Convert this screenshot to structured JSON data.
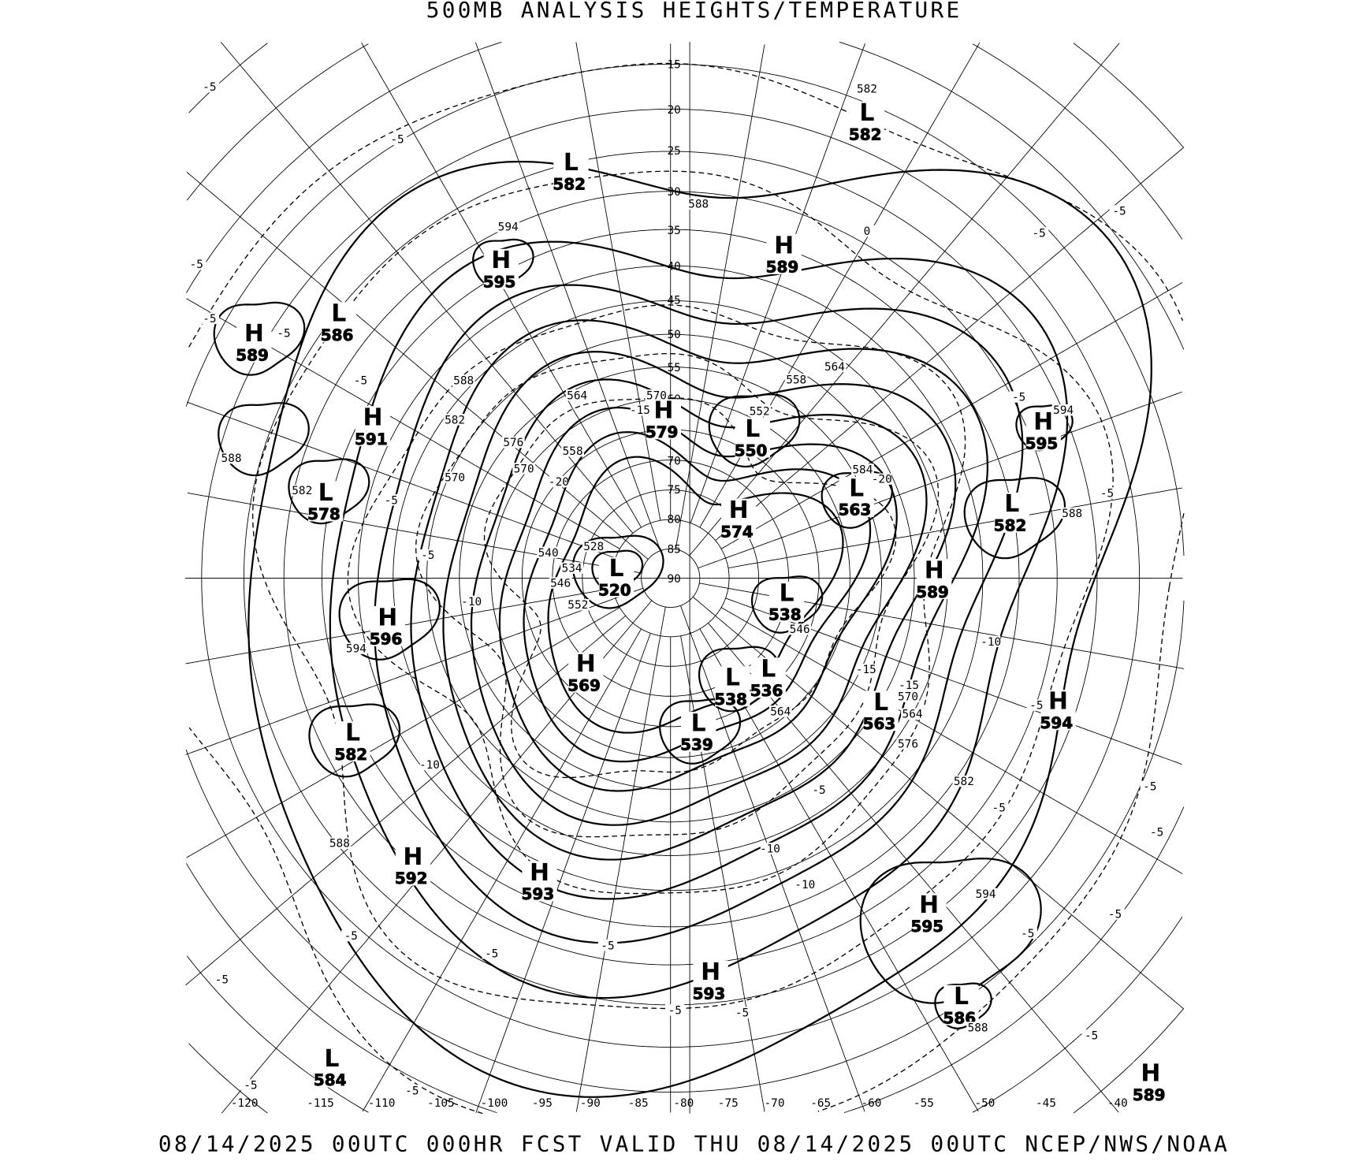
{
  "title": "500MB ANALYSIS  HEIGHTS/TEMPERATURE",
  "footer": "08/14/2025 00UTC 000HR FCST VALID THU 08/14/2025 00UTC  NCEP/NWS/NOAA",
  "projection": "north-polar-stereographic",
  "colors": {
    "background": "#ffffff",
    "lines": "#000000"
  },
  "latitude_labels": [
    "15",
    "20",
    "25",
    "30",
    "35",
    "40",
    "45",
    "50",
    "55",
    "60",
    "70",
    "75",
    "80",
    "85",
    "90"
  ],
  "longitude_labels": [
    "-120",
    "-115",
    "-110",
    "-105",
    "-100",
    "-95",
    "-90",
    "-85",
    "-80",
    "-75",
    "-70",
    "-65",
    "-60",
    "-55",
    "-50",
    "-45",
    "-40"
  ],
  "pressure_systems": [
    {
      "type": "L",
      "value": "582"
    },
    {
      "type": "L",
      "value": "582"
    },
    {
      "type": "H",
      "value": "589"
    },
    {
      "type": "H",
      "value": "595"
    },
    {
      "type": "L",
      "value": "586"
    },
    {
      "type": "H",
      "value": "589"
    },
    {
      "type": "H",
      "value": "591"
    },
    {
      "type": "H",
      "value": "579"
    },
    {
      "type": "L",
      "value": "550"
    },
    {
      "type": "H",
      "value": "595"
    },
    {
      "type": "L",
      "value": "578"
    },
    {
      "type": "L",
      "value": "563"
    },
    {
      "type": "L",
      "value": "582"
    },
    {
      "type": "H",
      "value": "574"
    },
    {
      "type": "L",
      "value": "520"
    },
    {
      "type": "H",
      "value": "589"
    },
    {
      "type": "L",
      "value": "538"
    },
    {
      "type": "H",
      "value": "596"
    },
    {
      "type": "H",
      "value": "569"
    },
    {
      "type": "L",
      "value": "538"
    },
    {
      "type": "L",
      "value": "536"
    },
    {
      "type": "L",
      "value": "563"
    },
    {
      "type": "H",
      "value": "594"
    },
    {
      "type": "L",
      "value": "539"
    },
    {
      "type": "L",
      "value": "582"
    },
    {
      "type": "H",
      "value": "592"
    },
    {
      "type": "H",
      "value": "593"
    },
    {
      "type": "H",
      "value": "595"
    },
    {
      "type": "H",
      "value": "593"
    },
    {
      "type": "L",
      "value": "586"
    },
    {
      "type": "L",
      "value": "584"
    },
    {
      "type": "H",
      "value": "589"
    }
  ],
  "height_contour_labels": [
    "582",
    "588",
    "594",
    "588",
    "582",
    "576",
    "570",
    "570",
    "558",
    "564",
    "570",
    "552",
    "558",
    "564",
    "584",
    "588",
    "594",
    "588",
    "582",
    "594",
    "552",
    "546",
    "540",
    "528",
    "534",
    "546",
    "564",
    "576",
    "570",
    "582",
    "588",
    "594",
    "588",
    "564"
  ],
  "temperature_contour_labels": [
    "-5",
    "-5",
    "-5",
    "-5",
    "-5",
    "-5",
    "-5",
    "-5",
    "-5",
    "-5",
    "-5",
    "-5",
    "-5",
    "-5",
    "-5",
    "-5",
    "-5",
    "-5",
    "-5",
    "-5",
    "-5",
    "-5",
    "-5",
    "-5",
    "-5",
    "-5",
    "-5",
    "-5",
    "0",
    "-10",
    "-10",
    "-10",
    "-10",
    "-10",
    "-15",
    "-15",
    "-15",
    "-20",
    "-20"
  ]
}
